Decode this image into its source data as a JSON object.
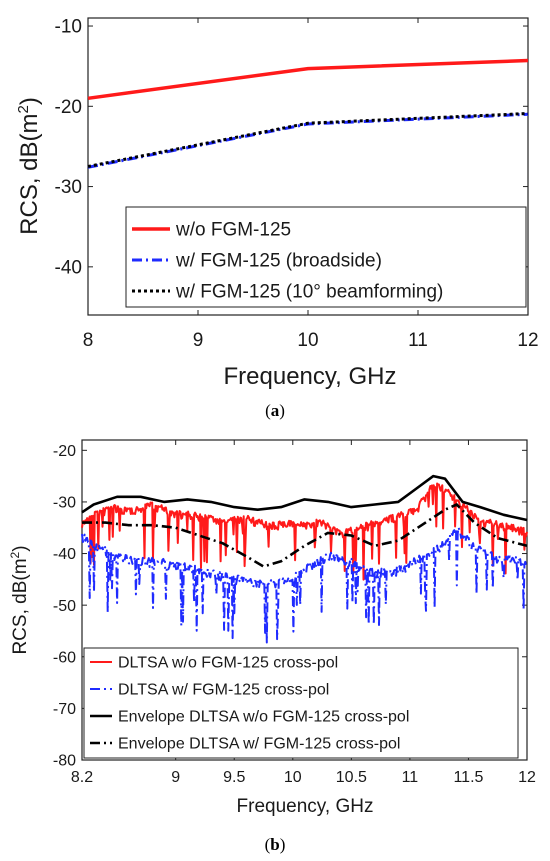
{
  "colors": {
    "red": "#ff1a1a",
    "blue": "#1f2bff",
    "black": "#000000"
  },
  "charts": [
    {
      "panel": "(a)",
      "caption_letter": "a",
      "chart_data": {
        "type": "line",
        "xlabel": "Frequency, GHz",
        "ylabel": "RCS, dB(m",
        "ylabel_sup": "2",
        "ylabel_close": ")",
        "xlim": [
          8,
          12
        ],
        "ylim": [
          -46,
          -9
        ],
        "xticks": [
          8,
          9,
          10,
          11,
          12
        ],
        "yticks": [
          -40,
          -30,
          -20,
          -10
        ],
        "grid": false,
        "legend_position": "lower-right",
        "series": [
          {
            "name": "w/o FGM-125",
            "color": "#ff1a1a",
            "dash": "solid",
            "x": [
              8,
              10,
              12
            ],
            "y": [
              -19.0,
              -15.3,
              -14.3
            ]
          },
          {
            "name": "w/ FGM-125 (broadside)",
            "color": "#1f2bff",
            "dash": "dashdot",
            "x": [
              8,
              10,
              12
            ],
            "y": [
              -27.6,
              -22.2,
              -21.0
            ]
          },
          {
            "name": "w/ FGM-125 (10° beamforming)",
            "color": "#000000",
            "dash": "dotted",
            "x": [
              8,
              10,
              12
            ],
            "y": [
              -27.5,
              -22.1,
              -20.9
            ]
          }
        ]
      }
    },
    {
      "panel": "(b)",
      "caption_letter": "b",
      "chart_data": {
        "type": "line",
        "xlabel": "Frequency, GHz",
        "ylabel": "RCS, dB(m",
        "ylabel_sup": "2",
        "ylabel_close": ")",
        "xlim": [
          8.2,
          12
        ],
        "ylim": [
          -80,
          -18
        ],
        "xticks": [
          8.2,
          9,
          9.5,
          10,
          10.5,
          11,
          11.5,
          12
        ],
        "yticks": [
          -80,
          -70,
          -60,
          -50,
          -40,
          -30,
          -20
        ],
        "grid": false,
        "legend_position": "lower-left",
        "series": [
          {
            "name": "DLTSA w/o FGM-125 cross-pol",
            "color": "#ff1a1a",
            "dash": "solid",
            "x": [
              8.2,
              8.3,
              8.45,
              8.6,
              8.8,
              9.0,
              9.2,
              9.4,
              9.6,
              9.8,
              9.95,
              10.1,
              10.25,
              10.4,
              10.55,
              10.7,
              10.9,
              11.05,
              11.2,
              11.3,
              11.45,
              11.6,
              11.8,
              12.0
            ],
            "y": [
              -33.5,
              -32,
              -30.5,
              -31,
              -30,
              -31.5,
              -32,
              -33,
              -32.5,
              -34,
              -33.5,
              -34,
              -33,
              -35.5,
              -34.5,
              -33.5,
              -32,
              -31,
              -26,
              -27,
              -30,
              -33,
              -34,
              -35
            ]
          },
          {
            "name": "DLTSA w/ FGM-125 cross-pol",
            "color": "#1f2bff",
            "dash": "dashdot",
            "x": [
              8.2,
              8.35,
              8.5,
              8.7,
              8.9,
              9.1,
              9.3,
              9.5,
              9.7,
              9.85,
              10.0,
              10.2,
              10.35,
              10.5,
              10.7,
              10.9,
              11.1,
              11.25,
              11.4,
              11.55,
              11.75,
              12.0
            ],
            "y": [
              -36,
              -38,
              -40,
              -40.5,
              -41,
              -42,
              -43,
              -44,
              -45,
              -45,
              -44,
              -41,
              -39.5,
              -41,
              -43,
              -42.5,
              -40,
              -38,
              -34.5,
              -38,
              -40,
              -41
            ]
          },
          {
            "name": "Envelope DLTSA w/o FGM-125 cross-pol",
            "color": "#000000",
            "dash": "solid",
            "x": [
              8.2,
              8.3,
              8.5,
              8.7,
              8.9,
              9.1,
              9.3,
              9.5,
              9.7,
              9.9,
              10.1,
              10.3,
              10.5,
              10.7,
              10.9,
              11.05,
              11.2,
              11.3,
              11.45,
              11.6,
              11.8,
              12.0
            ],
            "y": [
              -32,
              -30.5,
              -29,
              -29,
              -30,
              -29.5,
              -30,
              -31,
              -31.5,
              -31,
              -29.5,
              -30,
              -31,
              -30.5,
              -30,
              -27.5,
              -25,
              -25.5,
              -30,
              -31,
              -32.5,
              -33.5
            ]
          },
          {
            "name": "Envelope DLTSA w/ FGM-125 cross-pol",
            "color": "#000000",
            "dash": "dashdot",
            "x": [
              8.2,
              8.4,
              8.6,
              8.8,
              9.0,
              9.2,
              9.4,
              9.6,
              9.75,
              9.9,
              10.1,
              10.3,
              10.5,
              10.7,
              10.9,
              11.1,
              11.3,
              11.4,
              11.55,
              11.75,
              12.0
            ],
            "y": [
              -34,
              -34,
              -34.5,
              -34.5,
              -35,
              -36.5,
              -38,
              -40.5,
              -42.5,
              -41.5,
              -38.5,
              -36,
              -36.5,
              -38.5,
              -37.5,
              -34.5,
              -31.5,
              -30.5,
              -34,
              -37,
              -38.5
            ]
          }
        ]
      }
    }
  ]
}
